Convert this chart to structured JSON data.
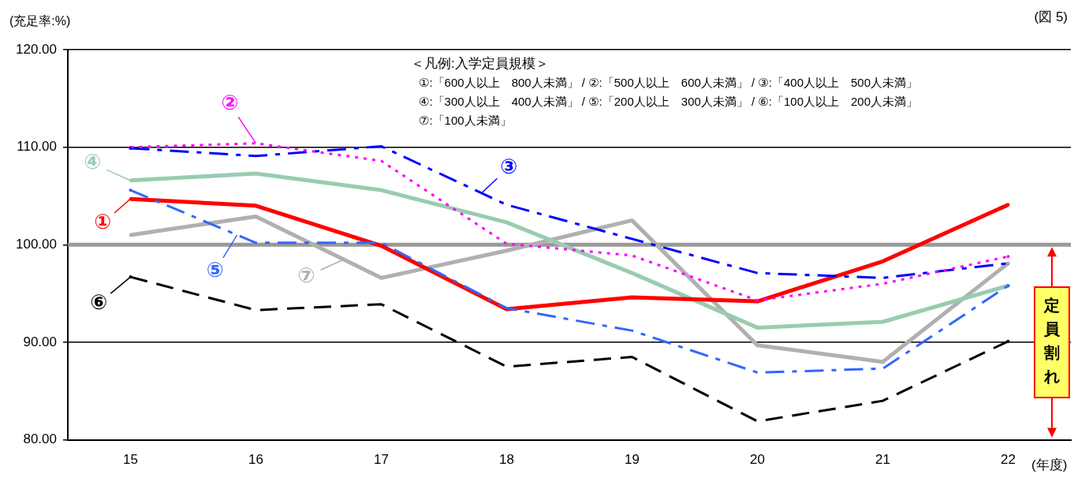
{
  "chart_data": {
    "type": "line",
    "ylabel": "(充足率:%)",
    "xlabel": "(年度)",
    "categories": [
      "15",
      "16",
      "17",
      "18",
      "19",
      "20",
      "21",
      "22"
    ],
    "ylim": [
      80,
      120
    ],
    "yticks": [
      {
        "value": 80,
        "label": "80.00"
      },
      {
        "value": 90,
        "label": "90.00"
      },
      {
        "value": 100,
        "label": "100.00"
      },
      {
        "value": 110,
        "label": "110.00"
      },
      {
        "value": 120,
        "label": "120.00"
      }
    ],
    "grid": "y",
    "marker": "none",
    "series": [
      {
        "name": "①",
        "color": "#ff0000",
        "line_style": "solid",
        "values": [
          104.7,
          104.0,
          99.9,
          93.4,
          94.6,
          94.2,
          98.3,
          104.1
        ]
      },
      {
        "name": "②",
        "color": "#ff00ff",
        "line_style": "dotted",
        "values": [
          110.0,
          110.4,
          108.6,
          100.1,
          98.9,
          94.3,
          96.0,
          98.8
        ]
      },
      {
        "name": "③",
        "color": "#0000ff",
        "line_style": "dashdot",
        "values": [
          109.9,
          109.1,
          110.1,
          104.1,
          100.6,
          97.1,
          96.6,
          98.1
        ]
      },
      {
        "name": "④",
        "color": "#99ccb0",
        "line_style": "solid",
        "values": [
          106.6,
          107.3,
          105.6,
          102.3,
          97.1,
          91.5,
          92.1,
          95.8
        ]
      },
      {
        "name": "⑤",
        "color": "#3366ff",
        "line_style": "dashdot",
        "values": [
          105.6,
          100.2,
          100.2,
          93.5,
          91.2,
          86.9,
          87.3,
          95.8
        ]
      },
      {
        "name": "⑥",
        "color": "#000000",
        "line_style": "dashed",
        "values": [
          96.7,
          93.3,
          93.9,
          87.5,
          88.5,
          81.9,
          84.0,
          90.1
        ]
      },
      {
        "name": "⑦",
        "color": "#b0b0b0",
        "line_style": "solid",
        "values": [
          101.0,
          102.9,
          96.6,
          99.4,
          102.5,
          89.7,
          88.0,
          98.1
        ]
      }
    ],
    "ref_lines": [
      {
        "axis": "y",
        "value": 100,
        "color": "#999999"
      }
    ],
    "legend": "left",
    "legend_title": "＜凡例:入学定員規模＞",
    "annotations": [
      "①:「600人以上　800人未満」 / ②:「500人以上　600人未満」 / ③:「400人以上　500人未満」",
      "④:「300人以上　400人未満」 / ⑤:「200人以上　300人未満」 / ⑥:「100人以上　200人未満」",
      "⑦:「100人未満」",
      "(図 5)",
      "定員割れ"
    ]
  }
}
